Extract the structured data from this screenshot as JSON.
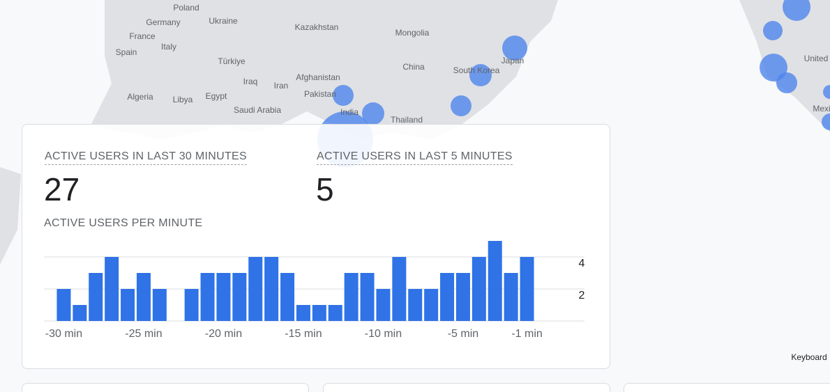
{
  "map_labels": [
    "Poland",
    "Germany",
    "Ukraine",
    "France",
    "Italy",
    "Spain",
    "Kazakhstan",
    "Mongolia",
    "Türkiye",
    "China",
    "South Korea",
    "Japan",
    "Afghanistan",
    "Iraq",
    "Iran",
    "Pakistan",
    "Algeria",
    "Libya",
    "Egypt",
    "Saudi Arabia",
    "India",
    "Thailand",
    "United",
    "Mexi"
  ],
  "keyboard": "Keyboard",
  "card": {
    "metric_30": {
      "label": "ACTIVE USERS IN LAST 30 MINUTES",
      "value": 27
    },
    "metric_5": {
      "label": "ACTIVE USERS IN LAST 5 MINUTES",
      "value": 5
    }
  },
  "chart_data": {
    "type": "bar",
    "title": "ACTIVE USERS PER MINUTE",
    "categories": [
      "-30 min",
      null,
      null,
      null,
      null,
      "-25 min",
      null,
      null,
      null,
      null,
      "-20 min",
      null,
      null,
      null,
      null,
      "-15 min",
      null,
      null,
      null,
      null,
      "-10 min",
      null,
      null,
      null,
      null,
      "-5 min",
      null,
      null,
      null,
      "-1 min"
    ],
    "values": [
      2,
      1,
      3,
      4,
      2,
      3,
      2,
      0,
      2,
      3,
      3,
      3,
      4,
      4,
      3,
      1,
      1,
      1,
      3,
      3,
      2,
      4,
      2,
      2,
      3,
      3,
      4,
      5,
      3,
      4
    ],
    "color": "#2f73e6",
    "ylim": [
      0,
      5
    ],
    "yticks": [
      2,
      4
    ],
    "grid": true
  }
}
